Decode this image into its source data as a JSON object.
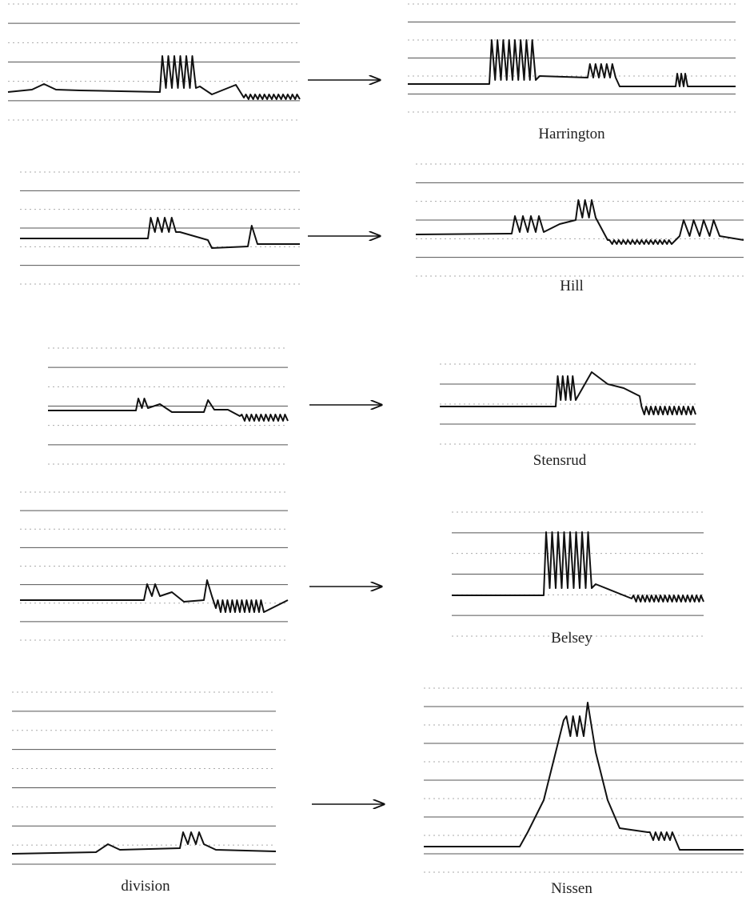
{
  "rows": [
    {
      "right_label": "Harrington"
    },
    {
      "right_label": "Hill"
    },
    {
      "right_label": "Stensrud"
    },
    {
      "right_label": "Belsey"
    },
    {
      "left_label": "division",
      "right_label": "Nissen"
    }
  ]
}
